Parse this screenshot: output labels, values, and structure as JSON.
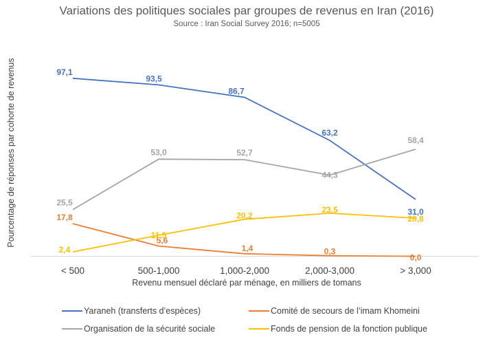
{
  "chart_data": {
    "type": "line",
    "title": "Variations des politiques sociales par groupes de revenus en Iran (2016)",
    "subtitle": "Source : Iran Social Survey 2016; n=5005",
    "xlabel": "Revenu mensuel déclaré par ménage, en milliers de tomans",
    "ylabel": "Pourcentage de réponses par cohorte de revenus",
    "categories": [
      "< 500",
      "500-1,000",
      "1,000-2,000",
      "2,000-3,000",
      "> 3,000"
    ],
    "ylim": [
      0,
      100
    ],
    "grid": false,
    "legend_position": "bottom",
    "series": [
      {
        "name": "Yaraneh (transferts d’espèces)",
        "color": "#4472C4",
        "values": [
          97.1,
          93.5,
          86.7,
          63.2,
          31.0
        ],
        "labels": [
          "97,1",
          "93,5",
          "86,7",
          "63,2",
          "31,0"
        ]
      },
      {
        "name": "Comité de secours de l’imam Khomeini",
        "color": "#ED7D31",
        "values": [
          17.8,
          5.6,
          1.4,
          0.3,
          0.0
        ],
        "labels": [
          "17,8",
          "5,6",
          "1,4",
          "0,3",
          "0,0"
        ]
      },
      {
        "name": "Organisation de la sécurité sociale",
        "color": "#A5A5A5",
        "values": [
          25.5,
          53.0,
          52.7,
          44.3,
          58.4
        ],
        "labels": [
          "25,5",
          "53,0",
          "52,7",
          "44,3",
          "58,4"
        ]
      },
      {
        "name": "Fonds de pension de la fonction publique",
        "color": "#FFC000",
        "values": [
          2.4,
          11.5,
          20.2,
          23.5,
          20.8
        ],
        "labels": [
          "2,4",
          "11,5",
          "20,2",
          "23,5",
          "20,8"
        ]
      }
    ]
  }
}
